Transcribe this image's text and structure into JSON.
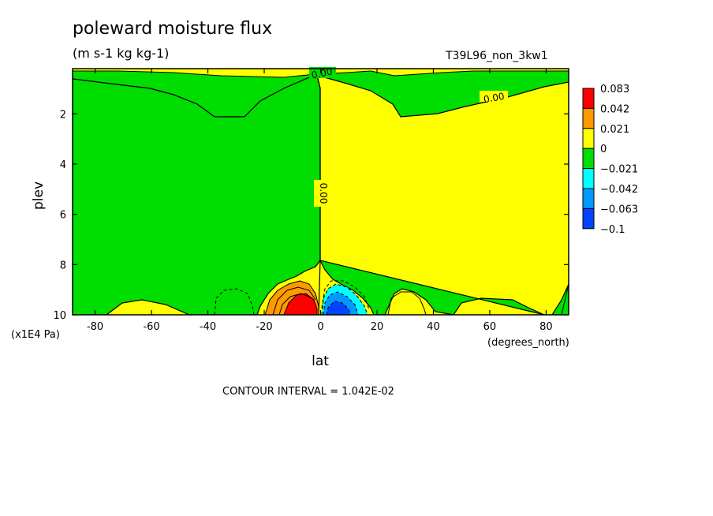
{
  "chart_data": {
    "type": "heatmap",
    "title": "poleward moisture flux",
    "subtitle": "(m s-1 kg kg-1)",
    "run_label": "T39L96_non_3kw1",
    "xlabel": "lat",
    "x_units": "(degrees_north)",
    "ylabel": "plev",
    "y_units": "(x1E4 Pa)",
    "xlim": [
      -88,
      88
    ],
    "ylim": [
      10,
      0.2
    ],
    "y_reversed": true,
    "x_ticks": [
      -80,
      -60,
      -40,
      -20,
      0,
      20,
      40,
      60,
      80
    ],
    "x_tick_labels": [
      "-80",
      "-60",
      "-40",
      "-20",
      "0",
      "20",
      "40",
      "60",
      "80"
    ],
    "y_ticks": [
      2,
      4,
      6,
      8,
      10
    ],
    "y_tick_labels": [
      "2",
      "4",
      "6",
      "8",
      "10"
    ],
    "contour_interval_text": "CONTOUR INTERVAL = 1.042E-02",
    "contour_labels": [
      "0.00",
      "0.00",
      "0.00"
    ],
    "colorbar": {
      "labels": [
        "0.083",
        "0.042",
        "0.021",
        "0",
        "−0.021",
        "−0.042",
        "−0.063",
        "−0.1"
      ],
      "colors": [
        "#ff0000",
        "#ff9900",
        "#ffff00",
        "#00dd00",
        "#00ffff",
        "#0099ff",
        "#0044ff"
      ]
    },
    "colors": {
      "positive_low": "#ffff00",
      "negative_low": "#00dd00",
      "positive_mid": "#ff9900",
      "positive_high": "#ff0000",
      "negative_mid": "#00ffff",
      "negative_high": "#0099ff",
      "negative_max": "#0044ff"
    },
    "grid": false
  }
}
